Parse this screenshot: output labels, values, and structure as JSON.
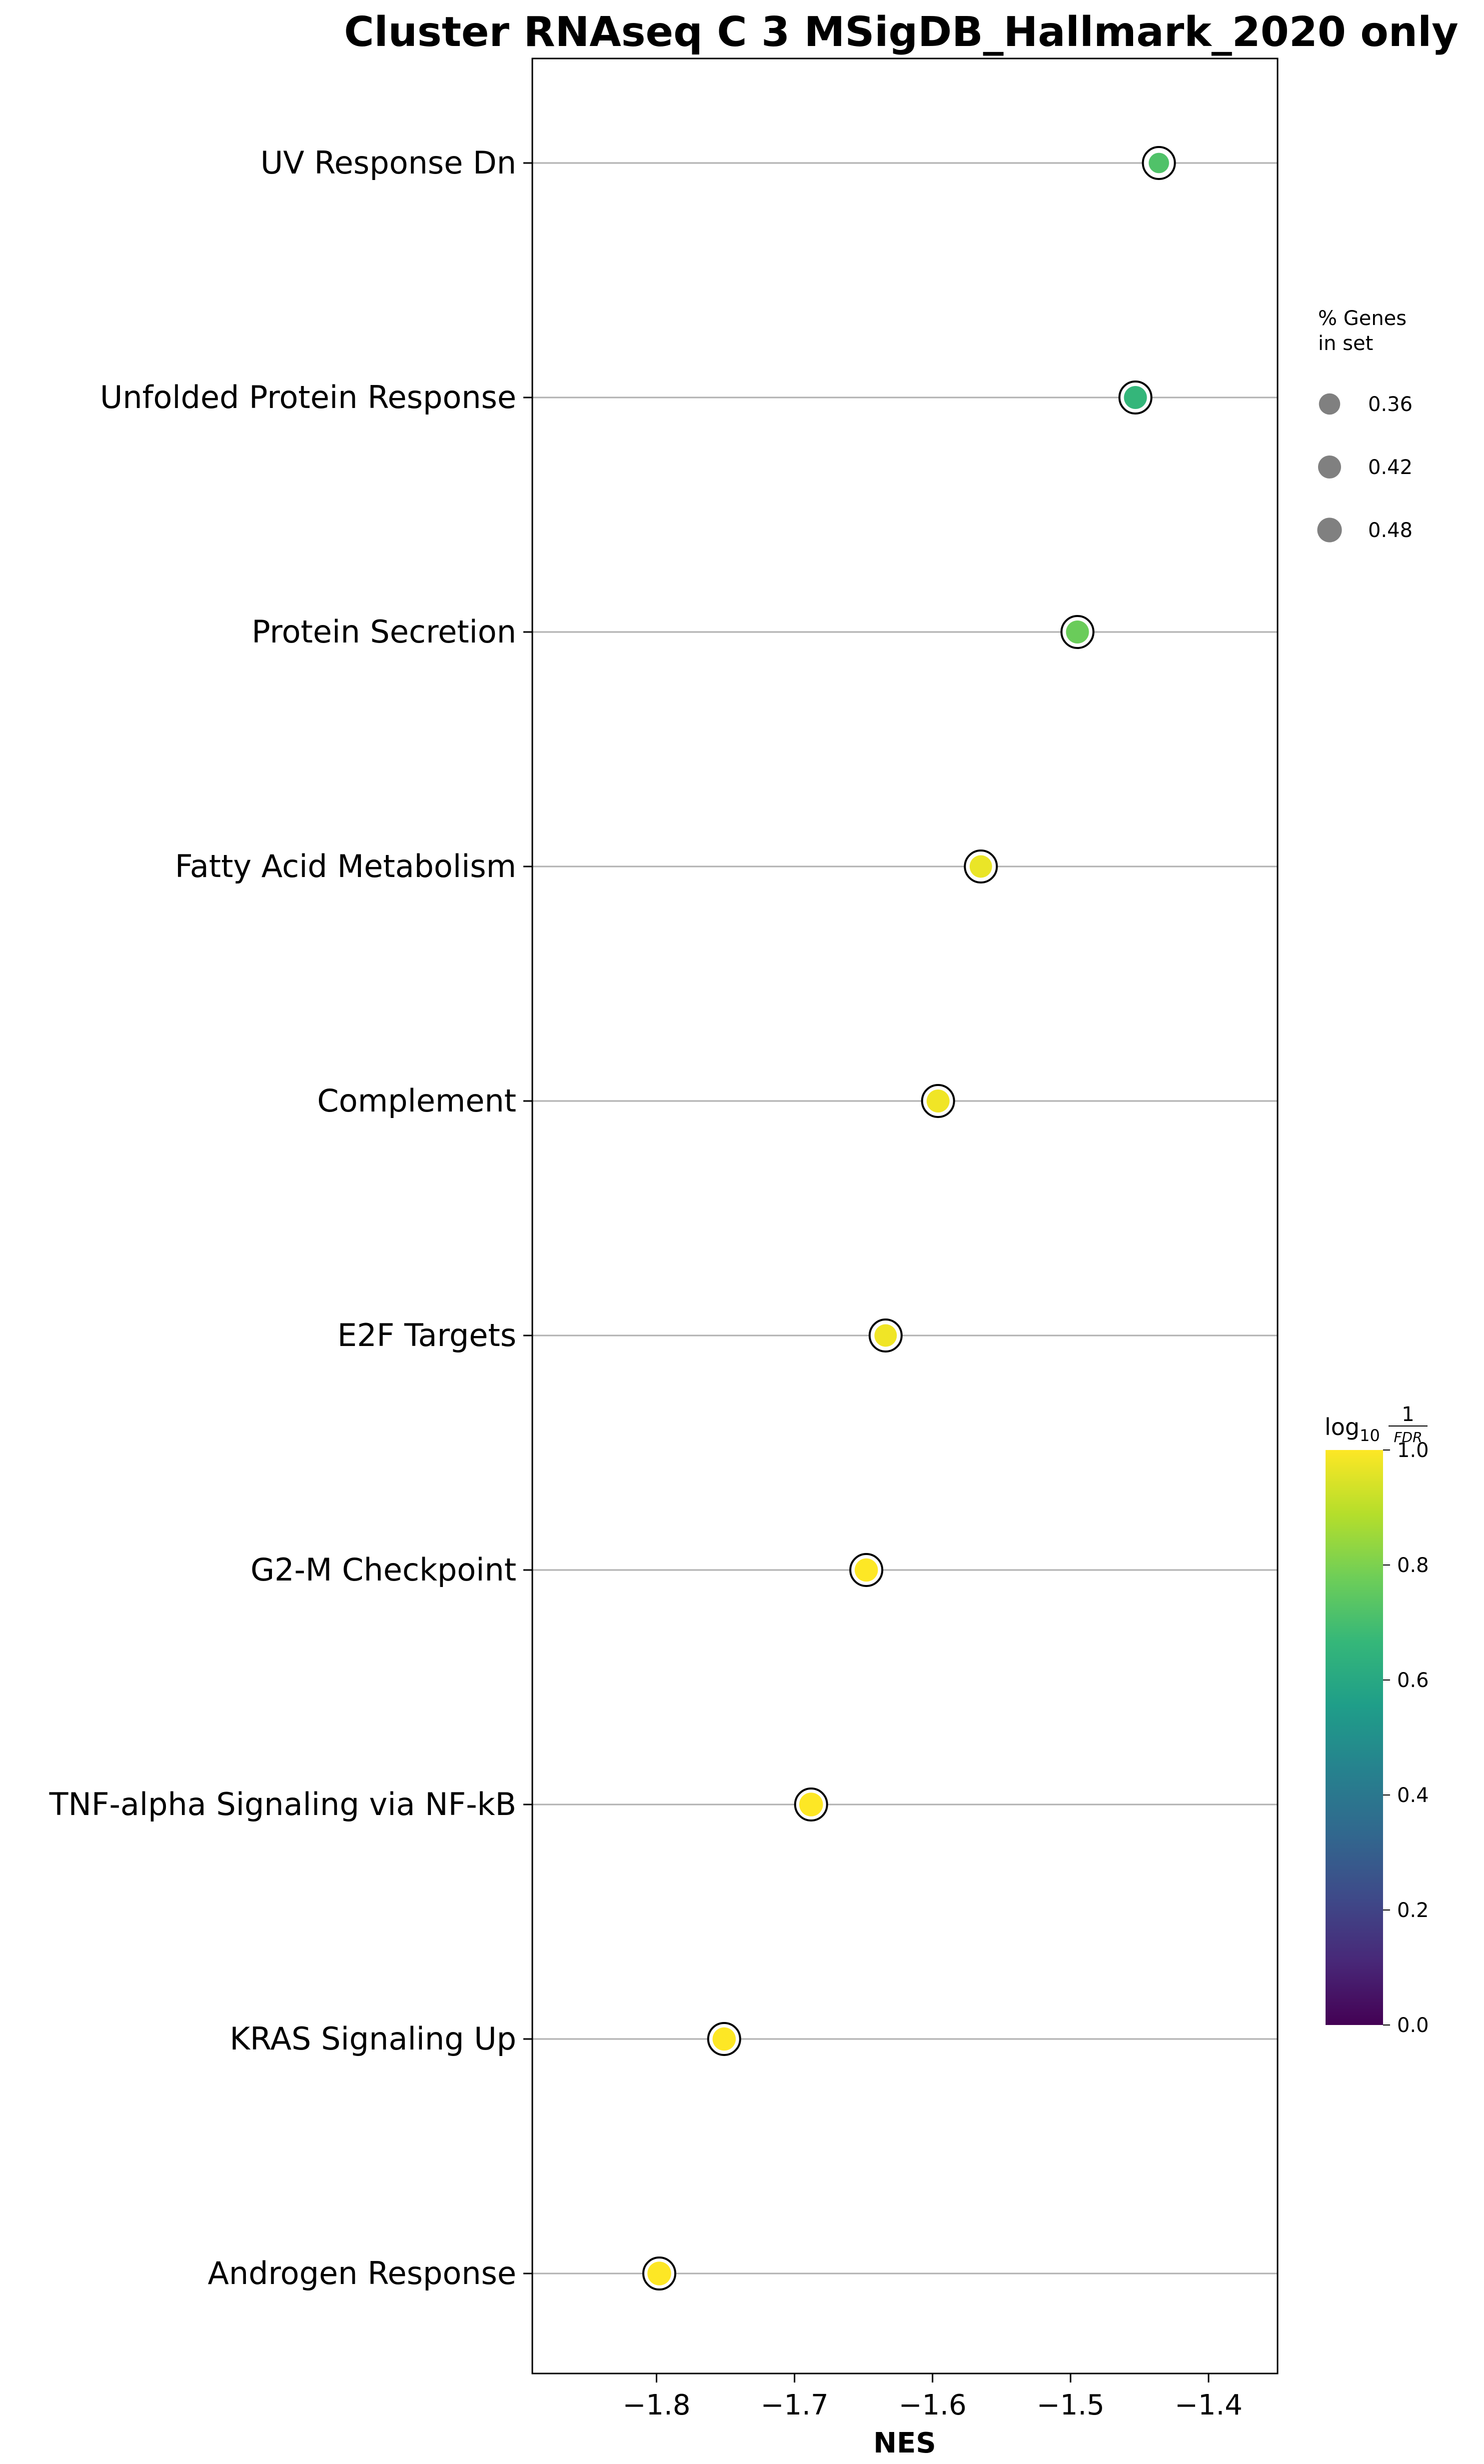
{
  "chart_data": {
    "type": "scatter",
    "title": "Cluster RNAseq C 3 MSigDB_Hallmark_2020 only",
    "xlabel": "NES",
    "ylabel": "",
    "xlim": [
      -1.89,
      -1.35
    ],
    "xticks": [
      -1.8,
      -1.7,
      -1.6,
      -1.5,
      -1.4
    ],
    "xtick_labels": [
      "−1.8",
      "−1.7",
      "−1.6",
      "−1.5",
      "−1.4"
    ],
    "grid": "horizontal",
    "categories": [
      "UV Response Dn",
      "Unfolded Protein Response",
      "Protein Secretion",
      "Fatty Acid Metabolism",
      "Complement",
      "E2F Targets",
      "G2-M Checkpoint",
      "TNF-alpha Signaling via NF-kB",
      "KRAS Signaling Up",
      "Androgen Response"
    ],
    "points": [
      {
        "term": "UV Response Dn",
        "nes": -1.436,
        "log10_inv_fdr": 0.72,
        "pct_genes": 0.33
      },
      {
        "term": "Unfolded Protein Response",
        "nes": -1.453,
        "log10_inv_fdr": 0.66,
        "pct_genes": 0.42
      },
      {
        "term": "Protein Secretion",
        "nes": -1.495,
        "log10_inv_fdr": 0.77,
        "pct_genes": 0.42
      },
      {
        "term": "Fatty Acid Metabolism",
        "nes": -1.565,
        "log10_inv_fdr": 0.97,
        "pct_genes": 0.4
      },
      {
        "term": "Complement",
        "nes": -1.596,
        "log10_inv_fdr": 0.98,
        "pct_genes": 0.42
      },
      {
        "term": "E2F Targets",
        "nes": -1.634,
        "log10_inv_fdr": 0.98,
        "pct_genes": 0.4
      },
      {
        "term": "G2-M Checkpoint",
        "nes": -1.648,
        "log10_inv_fdr": 1.0,
        "pct_genes": 0.43
      },
      {
        "term": "TNF-alpha Signaling via NF-kB",
        "nes": -1.688,
        "log10_inv_fdr": 1.0,
        "pct_genes": 0.45
      },
      {
        "term": "KRAS Signaling Up",
        "nes": -1.751,
        "log10_inv_fdr": 1.0,
        "pct_genes": 0.43
      },
      {
        "term": "Androgen Response",
        "nes": -1.798,
        "log10_inv_fdr": 1.0,
        "pct_genes": 0.45
      }
    ],
    "size_legend": {
      "title_line1": "% Genes",
      "title_line2": "in set",
      "entries": [
        {
          "label": "0.36",
          "value": 0.36
        },
        {
          "label": "0.42",
          "value": 0.42
        },
        {
          "label": "0.48",
          "value": 0.48
        }
      ]
    },
    "colorbar": {
      "label_base": "log",
      "label_sub": "10",
      "label_num": "1",
      "label_den": "FDR",
      "colormap": "viridis",
      "range": [
        0.0,
        1.0
      ],
      "ticks": [
        0.0,
        0.2,
        0.4,
        0.6,
        0.8,
        1.0
      ],
      "tick_labels": [
        "0.0",
        "0.2",
        "0.4",
        "0.6",
        "0.8",
        "1.0"
      ],
      "stops": [
        "#440154",
        "#482878",
        "#3e4a89",
        "#31688e",
        "#26828e",
        "#1f9e89",
        "#35b779",
        "#6ece58",
        "#b5de2b",
        "#fde725"
      ]
    }
  }
}
